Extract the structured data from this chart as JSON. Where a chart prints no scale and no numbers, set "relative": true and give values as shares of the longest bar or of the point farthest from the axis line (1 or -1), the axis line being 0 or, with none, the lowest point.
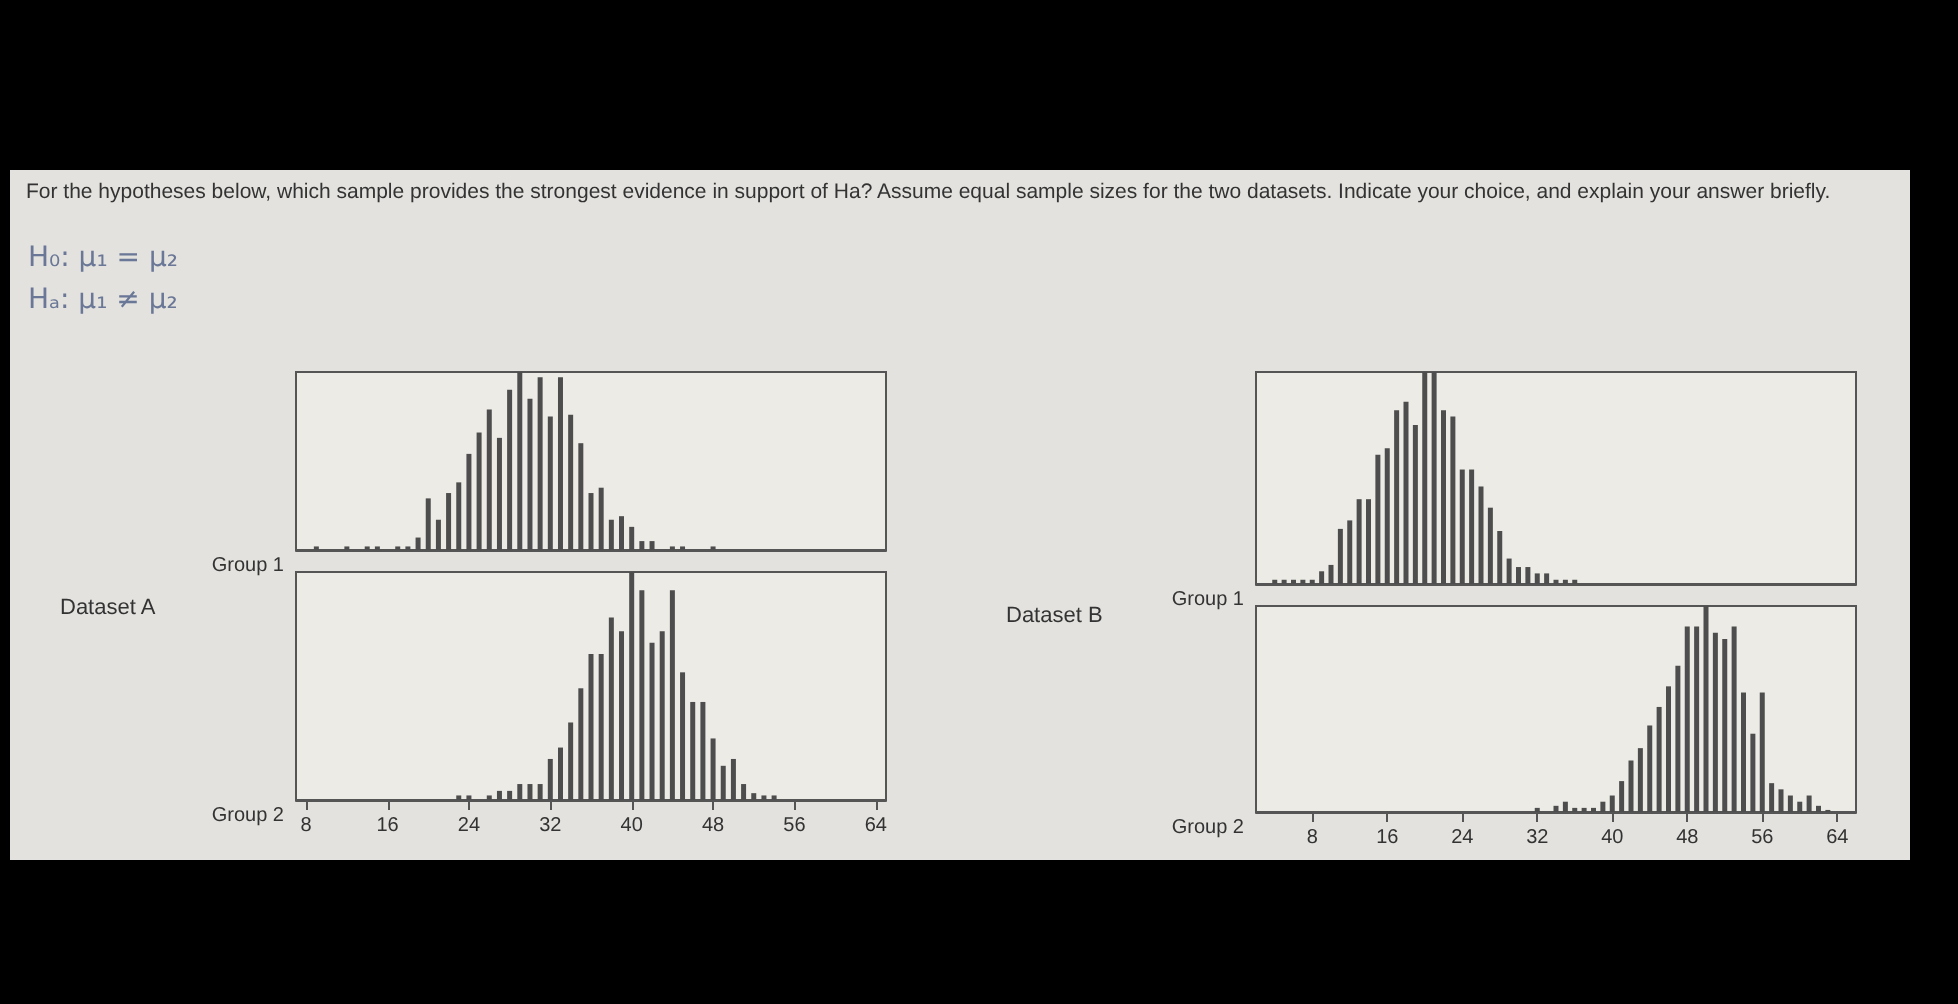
{
  "chart_data": [
    {
      "type": "bar",
      "relative": true,
      "title": "For the hypotheses below, which sample provides the strongest evidence in support of Ha? Assume equal sample sizes for the two datasets. Indicate your choice, and explain your answer briefly.",
      "annotations": [
        "H₀: μ₁ = μ₂",
        "Hₐ: μ₁ ≠ μ₂",
        "Dataset A"
      ],
      "ylabel": "Group 1",
      "color": "#4d4d4d",
      "xlim": [
        7,
        65
      ],
      "tick_labels": false,
      "x": [
        9,
        12,
        14,
        15,
        17,
        18,
        19,
        20,
        21,
        22,
        23,
        24,
        25,
        26,
        27,
        28,
        29,
        30,
        31,
        32,
        33,
        34,
        35,
        36,
        37,
        38,
        39,
        40,
        41,
        42,
        44,
        45,
        48
      ],
      "values": [
        0.02,
        0.02,
        0.02,
        0.02,
        0.02,
        0.02,
        0.07,
        0.29,
        0.17,
        0.32,
        0.38,
        0.54,
        0.66,
        0.79,
        0.63,
        0.9,
        1.0,
        0.85,
        0.97,
        0.75,
        0.97,
        0.76,
        0.6,
        0.32,
        0.35,
        0.17,
        0.19,
        0.13,
        0.05,
        0.05,
        0.02,
        0.02,
        0.02
      ]
    },
    {
      "type": "bar",
      "relative": true,
      "ylabel": "Group 2",
      "color": "#4d4d4d",
      "xlim": [
        7,
        65
      ],
      "xticks": [
        8,
        16,
        24,
        32,
        40,
        48,
        56,
        64
      ],
      "tick_labels": "x",
      "x": [
        23,
        24,
        26,
        27,
        28,
        29,
        30,
        31,
        32,
        33,
        34,
        35,
        36,
        37,
        38,
        39,
        40,
        41,
        42,
        43,
        44,
        45,
        46,
        47,
        48,
        49,
        50,
        51,
        52,
        53,
        54
      ],
      "values": [
        0.02,
        0.02,
        0.02,
        0.04,
        0.04,
        0.07,
        0.07,
        0.07,
        0.18,
        0.23,
        0.34,
        0.49,
        0.64,
        0.64,
        0.8,
        0.74,
        1.0,
        0.92,
        0.69,
        0.74,
        0.92,
        0.56,
        0.43,
        0.43,
        0.27,
        0.15,
        0.18,
        0.07,
        0.03,
        0.02,
        0.02
      ]
    },
    {
      "type": "bar",
      "relative": true,
      "annotations": [
        "Dataset B"
      ],
      "ylabel": "Group 1",
      "color": "#4d4d4d",
      "xlim": [
        2,
        66
      ],
      "tick_labels": false,
      "x": [
        4,
        5,
        6,
        7,
        8,
        9,
        10,
        11,
        12,
        13,
        14,
        15,
        16,
        17,
        18,
        19,
        20,
        21,
        22,
        23,
        24,
        25,
        26,
        27,
        28,
        29,
        30,
        31,
        32,
        33,
        34,
        35,
        36
      ],
      "values": [
        0.02,
        0.02,
        0.02,
        0.02,
        0.02,
        0.06,
        0.09,
        0.26,
        0.3,
        0.4,
        0.4,
        0.61,
        0.64,
        0.82,
        0.86,
        0.75,
        1.0,
        1.0,
        0.82,
        0.79,
        0.54,
        0.54,
        0.46,
        0.36,
        0.25,
        0.12,
        0.08,
        0.08,
        0.05,
        0.05,
        0.02,
        0.02,
        0.02
      ]
    },
    {
      "type": "bar",
      "relative": true,
      "ylabel": "Group 2",
      "color": "#4d4d4d",
      "xlim": [
        2,
        66
      ],
      "xticks": [
        8,
        16,
        24,
        32,
        40,
        48,
        56,
        64
      ],
      "tick_labels": "x",
      "x": [
        32,
        34,
        35,
        36,
        37,
        38,
        39,
        40,
        41,
        42,
        43,
        44,
        45,
        46,
        47,
        48,
        49,
        50,
        51,
        52,
        53,
        54,
        55,
        56,
        57,
        58,
        59,
        60,
        61,
        62,
        63
      ],
      "values": [
        0.02,
        0.03,
        0.05,
        0.02,
        0.02,
        0.02,
        0.05,
        0.08,
        0.15,
        0.25,
        0.31,
        0.42,
        0.51,
        0.61,
        0.71,
        0.9,
        0.9,
        1.0,
        0.87,
        0.84,
        0.9,
        0.58,
        0.38,
        0.58,
        0.14,
        0.11,
        0.08,
        0.05,
        0.08,
        0.03,
        0.01
      ]
    }
  ]
}
